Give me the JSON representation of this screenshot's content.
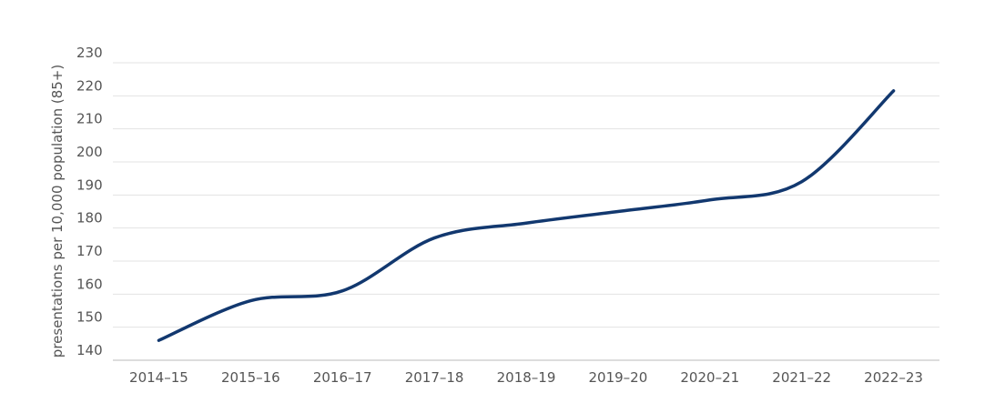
{
  "chart_data": {
    "type": "line",
    "y_label": "presentations per 10,000 population (85+)",
    "categories": [
      "2014–15",
      "2015–16",
      "2016–17",
      "2017–18",
      "2018–19",
      "2019–20",
      "2020–21",
      "2021–22",
      "2022–23"
    ],
    "series": [
      {
        "name": "presentations",
        "color": "#12386f",
        "values": [
          146,
          158,
          161,
          177,
          181.5,
          185,
          188.5,
          194,
          221.5
        ]
      }
    ],
    "ylim": [
      140,
      230
    ],
    "yticks": [
      140,
      150,
      160,
      170,
      180,
      190,
      200,
      210,
      220,
      230
    ],
    "grid": true
  }
}
